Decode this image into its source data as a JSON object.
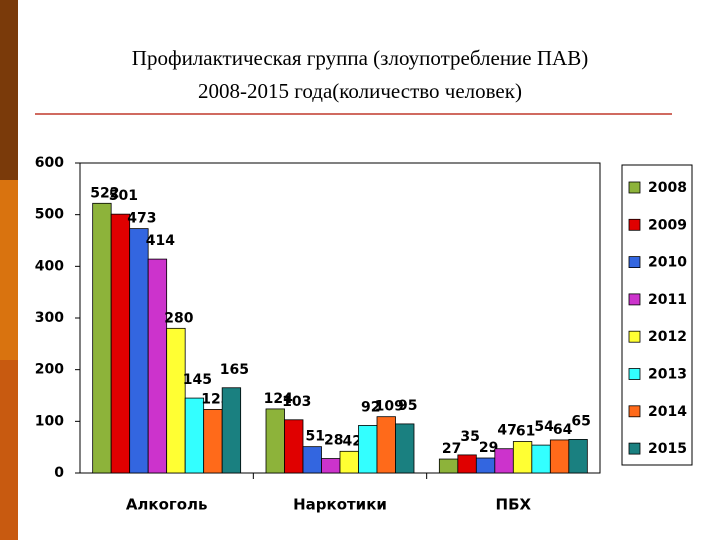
{
  "chart_data": {
    "type": "bar",
    "title": [
      "Профилактическая группа (злоупотребление ПАВ)",
      "2008-2015 года(количество человек)"
    ],
    "categories": [
      "Алкоголь",
      "Наркотики",
      "ПБХ"
    ],
    "series": [
      {
        "name": "2008",
        "color": "#8db33a",
        "values": [
          522,
          124,
          27
        ]
      },
      {
        "name": "2009",
        "color": "#e00000",
        "values": [
          501,
          103,
          35
        ]
      },
      {
        "name": "2010",
        "color": "#3366e0",
        "values": [
          473,
          51,
          29
        ]
      },
      {
        "name": "2011",
        "color": "#cc33cc",
        "values": [
          414,
          28,
          47
        ]
      },
      {
        "name": "2012",
        "color": "#ffff33",
        "values": [
          280,
          42,
          61
        ]
      },
      {
        "name": "2013",
        "color": "#33ffff",
        "values": [
          145,
          92,
          54
        ]
      },
      {
        "name": "2014",
        "color": "#ff6a1a",
        "values": [
          123,
          109,
          64
        ]
      },
      {
        "name": "2015",
        "color": "#1a8080",
        "values": [
          165,
          95,
          65
        ]
      }
    ],
    "ylim": [
      0,
      600
    ],
    "yticks": [
      0,
      100,
      200,
      300,
      400,
      500,
      600
    ],
    "grid": false,
    "legend": "right"
  }
}
